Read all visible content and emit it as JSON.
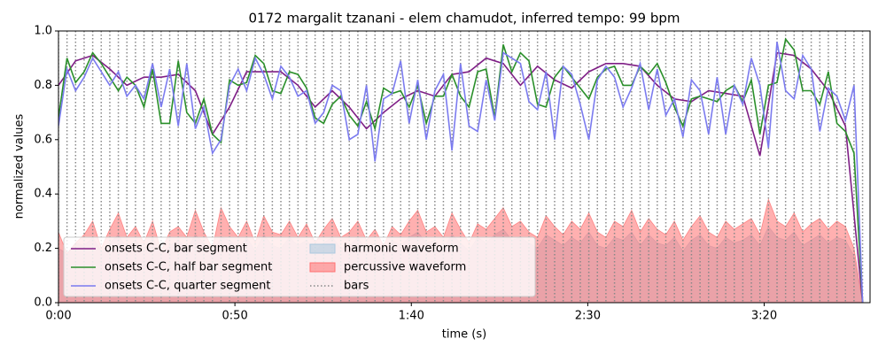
{
  "chart_data": {
    "type": "line",
    "title": "0172 margalit tzanani - elem chamudot, inferred tempo: 99 bpm",
    "xlabel": "time (s)",
    "ylabel": "normalized values",
    "xlim": [
      0,
      230
    ],
    "ylim": [
      0,
      1
    ],
    "xticks": [
      {
        "value": 0,
        "label": "0:00"
      },
      {
        "value": 50,
        "label": "0:50"
      },
      {
        "value": 100,
        "label": "1:40"
      },
      {
        "value": 150,
        "label": "2:30"
      },
      {
        "value": 200,
        "label": "3:20"
      }
    ],
    "yticks": [
      {
        "value": 0,
        "label": "0.0"
      },
      0.2,
      0.4,
      0.6,
      0.8,
      {
        "value": 1,
        "label": "1.0"
      }
    ],
    "legend": "lower left",
    "x": [
      0,
      2.42,
      4.85,
      7.27,
      9.7,
      12.12,
      14.55,
      16.97,
      19.39,
      21.82,
      24.24,
      26.67,
      29.09,
      31.52,
      33.94,
      36.36,
      38.79,
      41.21,
      43.64,
      46.06,
      48.48,
      50.91,
      53.33,
      55.76,
      58.18,
      60.61,
      63.03,
      65.45,
      67.88,
      70.3,
      72.73,
      75.15,
      77.58,
      80.0,
      82.42,
      84.85,
      87.27,
      89.7,
      92.12,
      94.55,
      96.97,
      99.39,
      101.82,
      104.24,
      106.67,
      109.09,
      111.52,
      113.94,
      116.36,
      118.79,
      121.21,
      123.64,
      126.06,
      128.48,
      130.91,
      133.33,
      135.76,
      138.18,
      140.61,
      143.03,
      145.45,
      147.88,
      150.3,
      152.73,
      155.15,
      157.58,
      160.0,
      162.42,
      164.85,
      167.27,
      169.7,
      172.12,
      174.55,
      176.97,
      179.39,
      181.82,
      184.24,
      186.67,
      189.09,
      191.52,
      193.94,
      196.36,
      198.79,
      201.21,
      203.64,
      206.06,
      208.48,
      210.91,
      213.33,
      215.76,
      218.18,
      220.61,
      223.03,
      225.45,
      227.88
    ],
    "series": [
      {
        "name": "onsets C-C, bar segment",
        "style": "line",
        "color": "#7f1f86",
        "x": [
          0,
          4.85,
          9.7,
          14.55,
          19.39,
          24.24,
          29.09,
          33.94,
          38.79,
          43.64,
          48.48,
          53.33,
          58.18,
          63.03,
          67.88,
          72.73,
          77.58,
          82.42,
          87.27,
          92.12,
          96.97,
          101.82,
          106.67,
          111.52,
          116.36,
          121.21,
          126.06,
          130.91,
          135.76,
          140.61,
          145.45,
          150.3,
          155.15,
          160.0,
          164.85,
          169.7,
          174.55,
          179.39,
          184.24,
          189.09,
          193.94,
          198.79,
          203.64,
          208.48,
          213.33,
          218.18,
          223.03,
          227.88
        ],
        "values": [
          0.8,
          0.89,
          0.91,
          0.86,
          0.8,
          0.83,
          0.83,
          0.84,
          0.78,
          0.62,
          0.72,
          0.85,
          0.85,
          0.85,
          0.8,
          0.72,
          0.78,
          0.72,
          0.64,
          0.7,
          0.75,
          0.78,
          0.76,
          0.84,
          0.85,
          0.9,
          0.88,
          0.8,
          0.87,
          0.82,
          0.79,
          0.85,
          0.88,
          0.88,
          0.87,
          0.8,
          0.75,
          0.74,
          0.78,
          0.77,
          0.76,
          0.54,
          0.92,
          0.91,
          0.86,
          0.78,
          0.65,
          0.0
        ]
      },
      {
        "name": "onsets C-C, half bar segment",
        "style": "line",
        "color": "#2a8f2a",
        "values": [
          0.68,
          0.9,
          0.81,
          0.85,
          0.92,
          0.88,
          0.83,
          0.78,
          0.83,
          0.8,
          0.72,
          0.86,
          0.66,
          0.66,
          0.89,
          0.7,
          0.66,
          0.75,
          0.62,
          0.59,
          0.82,
          0.8,
          0.81,
          0.91,
          0.88,
          0.78,
          0.77,
          0.85,
          0.84,
          0.79,
          0.68,
          0.66,
          0.73,
          0.76,
          0.69,
          0.65,
          0.74,
          0.64,
          0.79,
          0.77,
          0.78,
          0.72,
          0.8,
          0.66,
          0.76,
          0.76,
          0.84,
          0.76,
          0.72,
          0.85,
          0.86,
          0.68,
          0.95,
          0.85,
          0.92,
          0.89,
          0.73,
          0.72,
          0.83,
          0.87,
          0.83,
          0.79,
          0.75,
          0.83,
          0.86,
          0.87,
          0.8,
          0.8,
          0.87,
          0.84,
          0.88,
          0.81,
          0.72,
          0.65,
          0.75,
          0.76,
          0.75,
          0.74,
          0.78,
          0.8,
          0.74,
          0.82,
          0.62,
          0.8,
          0.81,
          0.97,
          0.93,
          0.78,
          0.78,
          0.73,
          0.85,
          0.66,
          0.63,
          0.55,
          0.0
        ]
      },
      {
        "name": "onsets C-C, quarter segment",
        "style": "line",
        "color": "#7b7bef",
        "values": [
          0.65,
          0.86,
          0.78,
          0.83,
          0.9,
          0.85,
          0.8,
          0.85,
          0.76,
          0.8,
          0.75,
          0.88,
          0.72,
          0.86,
          0.65,
          0.88,
          0.64,
          0.72,
          0.55,
          0.6,
          0.8,
          0.86,
          0.78,
          0.9,
          0.84,
          0.75,
          0.87,
          0.83,
          0.76,
          0.78,
          0.66,
          0.7,
          0.8,
          0.78,
          0.6,
          0.62,
          0.8,
          0.52,
          0.75,
          0.77,
          0.89,
          0.66,
          0.82,
          0.6,
          0.78,
          0.84,
          0.56,
          0.88,
          0.65,
          0.63,
          0.82,
          0.67,
          0.92,
          0.9,
          0.88,
          0.74,
          0.71,
          0.85,
          0.6,
          0.87,
          0.84,
          0.73,
          0.6,
          0.82,
          0.87,
          0.83,
          0.72,
          0.79,
          0.88,
          0.71,
          0.86,
          0.69,
          0.75,
          0.61,
          0.82,
          0.78,
          0.62,
          0.83,
          0.62,
          0.8,
          0.73,
          0.9,
          0.8,
          0.57,
          0.96,
          0.78,
          0.75,
          0.91,
          0.86,
          0.63,
          0.79,
          0.76,
          0.67,
          0.8,
          0.0
        ]
      },
      {
        "name": "harmonic waveform",
        "style": "fill",
        "color": "#aac8de",
        "values": [
          0.2,
          0.18,
          0.22,
          0.21,
          0.24,
          0.19,
          0.22,
          0.25,
          0.2,
          0.23,
          0.19,
          0.24,
          0.18,
          0.21,
          0.23,
          0.2,
          0.25,
          0.22,
          0.18,
          0.24,
          0.23,
          0.2,
          0.24,
          0.19,
          0.25,
          0.21,
          0.2,
          0.24,
          0.21,
          0.23,
          0.19,
          0.22,
          0.24,
          0.2,
          0.21,
          0.24,
          0.19,
          0.22,
          0.18,
          0.23,
          0.21,
          0.24,
          0.26,
          0.22,
          0.23,
          0.2,
          0.25,
          0.22,
          0.19,
          0.24,
          0.22,
          0.25,
          0.27,
          0.23,
          0.24,
          0.22,
          0.2,
          0.25,
          0.23,
          0.21,
          0.24,
          0.22,
          0.26,
          0.21,
          0.2,
          0.24,
          0.23,
          0.26,
          0.21,
          0.25,
          0.22,
          0.21,
          0.24,
          0.19,
          0.23,
          0.25,
          0.21,
          0.2,
          0.24,
          0.22,
          0.23,
          0.25,
          0.21,
          0.28,
          0.24,
          0.23,
          0.26,
          0.21,
          0.23,
          0.25,
          0.22,
          0.24,
          0.23,
          0.17,
          0.0
        ]
      },
      {
        "name": "percussive waveform",
        "style": "fill",
        "color": "#ff7070",
        "values": [
          0.26,
          0.18,
          0.22,
          0.25,
          0.3,
          0.2,
          0.27,
          0.33,
          0.24,
          0.28,
          0.22,
          0.3,
          0.19,
          0.26,
          0.28,
          0.24,
          0.34,
          0.26,
          0.2,
          0.35,
          0.28,
          0.24,
          0.3,
          0.22,
          0.32,
          0.26,
          0.25,
          0.3,
          0.24,
          0.29,
          0.22,
          0.27,
          0.31,
          0.24,
          0.26,
          0.3,
          0.23,
          0.27,
          0.21,
          0.28,
          0.25,
          0.3,
          0.34,
          0.26,
          0.28,
          0.24,
          0.33,
          0.27,
          0.22,
          0.29,
          0.27,
          0.31,
          0.35,
          0.28,
          0.3,
          0.26,
          0.24,
          0.32,
          0.28,
          0.25,
          0.3,
          0.27,
          0.33,
          0.26,
          0.24,
          0.3,
          0.28,
          0.34,
          0.26,
          0.31,
          0.27,
          0.25,
          0.3,
          0.23,
          0.28,
          0.32,
          0.26,
          0.24,
          0.3,
          0.27,
          0.29,
          0.31,
          0.25,
          0.38,
          0.3,
          0.28,
          0.33,
          0.26,
          0.29,
          0.31,
          0.27,
          0.3,
          0.28,
          0.2,
          0.0
        ]
      },
      {
        "name": "bars",
        "style": "dotted",
        "color": "#888888"
      }
    ]
  }
}
